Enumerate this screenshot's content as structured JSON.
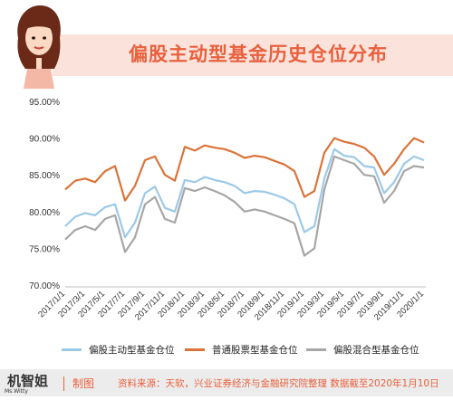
{
  "header": {
    "title": "偏股主动型基金历史仓位分布"
  },
  "footer": {
    "logo_text": "机智姐",
    "logo_sub": "Ms.Witty",
    "tag": "制图",
    "source": "资料来源：天软，兴业证券经济与金融研究院整理 数据截至2020年1月10日"
  },
  "colors": {
    "accent": "#e8603d",
    "banner": "#fbe3dc",
    "series_blue": "#9cc9e8",
    "series_orange": "#d9743a",
    "series_gray": "#a6a6a6"
  },
  "chart_data": {
    "type": "line",
    "y_ticks": [
      "70.00%",
      "75.00%",
      "80.00%",
      "85.00%",
      "90.00%",
      "95.00%"
    ],
    "ylim": [
      70,
      96
    ],
    "grid": false,
    "legend_position": "bottom",
    "x_ticks": [
      "2017/1/1",
      "2017/3/1",
      "2017/5/1",
      "2017/7/1",
      "2017/9/1",
      "2017/11/1",
      "2018/1/1",
      "2018/3/1",
      "2018/5/1",
      "2018/7/1",
      "2018/9/1",
      "2018/11/1",
      "2019/1/1",
      "2019/3/1",
      "2019/5/1",
      "2019/7/1",
      "2019/9/1",
      "2019/11/1",
      "2020/1/1"
    ],
    "x": [
      "2017/1",
      "2017/2",
      "2017/3",
      "2017/4",
      "2017/5",
      "2017/6",
      "2017/7",
      "2017/8",
      "2017/9",
      "2017/10",
      "2017/11",
      "2017/12",
      "2018/1",
      "2018/2",
      "2018/3",
      "2018/4",
      "2018/5",
      "2018/6",
      "2018/7",
      "2018/8",
      "2018/9",
      "2018/10",
      "2018/11",
      "2018/12",
      "2019/1",
      "2019/2",
      "2019/3",
      "2019/4",
      "2019/5",
      "2019/6",
      "2019/7",
      "2019/8",
      "2019/9",
      "2019/10",
      "2019/11",
      "2019/12",
      "2020/1"
    ],
    "series": [
      {
        "name": "偏股主动型基金仓位",
        "color": "#9cc9e8",
        "values": [
          78.0,
          79.3,
          79.8,
          79.5,
          80.6,
          81.0,
          76.5,
          78.5,
          82.5,
          83.4,
          80.5,
          80.0,
          84.3,
          84.0,
          84.7,
          84.3,
          84.0,
          83.5,
          82.5,
          82.8,
          82.7,
          82.3,
          81.8,
          81.0,
          77.2,
          78.0,
          84.5,
          88.5,
          87.6,
          87.4,
          86.2,
          86.0,
          82.5,
          84.0,
          86.5,
          87.5,
          87.0
        ]
      },
      {
        "name": "普通股票型基金仓位",
        "color": "#d9743a",
        "values": [
          83.0,
          84.2,
          84.5,
          84.0,
          85.5,
          86.2,
          81.5,
          83.5,
          87.0,
          87.5,
          85.0,
          84.2,
          88.8,
          88.3,
          89.0,
          88.7,
          88.5,
          88.0,
          87.3,
          87.6,
          87.4,
          86.9,
          86.4,
          85.5,
          82.0,
          82.8,
          88.0,
          90.0,
          89.5,
          89.2,
          88.7,
          87.5,
          85.0,
          86.5,
          88.5,
          90.0,
          89.4
        ]
      },
      {
        "name": "偏股混合型基金仓位",
        "color": "#a6a6a6",
        "values": [
          76.2,
          77.5,
          78.0,
          77.5,
          79.0,
          79.5,
          74.5,
          76.5,
          81.0,
          82.0,
          79.0,
          78.5,
          83.2,
          82.8,
          83.3,
          82.8,
          82.2,
          81.3,
          80.0,
          80.3,
          80.0,
          79.5,
          79.0,
          78.4,
          74.0,
          75.0,
          83.0,
          87.5,
          87.0,
          86.5,
          85.0,
          84.8,
          81.2,
          82.8,
          85.5,
          86.2,
          86.0
        ]
      }
    ]
  }
}
